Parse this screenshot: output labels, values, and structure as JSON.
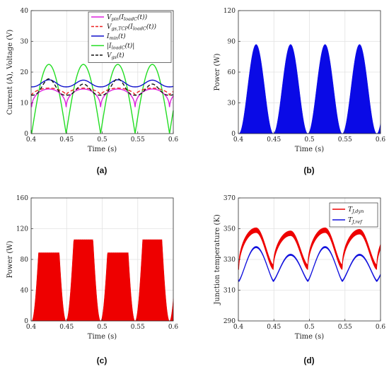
{
  "chart_data": [
    {
      "panel": "(a)",
      "type": "line",
      "xlabel": "Time (s)",
      "ylabel": "Current (A), Voltage (V)",
      "xlim": [
        0.4,
        0.6
      ],
      "ylim": [
        0,
        40
      ],
      "xticks": [
        0.4,
        0.45,
        0.5,
        0.55,
        0.6
      ],
      "xtick_labels": [
        "0.4",
        "0.45",
        "0.5",
        "0.55",
        "0.6"
      ],
      "yticks": [
        0,
        10,
        20,
        30,
        40
      ],
      "ytick_labels": [
        "0",
        "10",
        "20",
        "30",
        "40"
      ],
      "grid": true,
      "legend": "top-right",
      "period_s": 0.0485,
      "phase_s": 0.425,
      "series": [
        {
          "name": "V_pin(I_loadC(t))",
          "label_main": "V",
          "label_sub": "pin",
          "label_rest": "(I",
          "label_sub2": "loadC",
          "label_end": "(t))",
          "color": "#dd22dd",
          "dash": "solid",
          "kind": "vpin",
          "base": 7.5,
          "peak": 14.5
        },
        {
          "name": "V_gs,TCP(I_loadC(t))",
          "label_main": "V",
          "label_sub": "gs,TCP",
          "label_rest": "(I",
          "label_sub2": "loadC",
          "label_end": "(t))",
          "color": "#ee2222",
          "dash": "dashed",
          "kind": "vgstcp",
          "base": 12.5,
          "peak": 14.8
        },
        {
          "name": "I_min(t)",
          "label_main": "I",
          "label_sub": "min",
          "label_rest": "(t)",
          "label_sub2": "",
          "label_end": "",
          "color": "#1111cc",
          "dash": "solid",
          "kind": "imin",
          "base": 15.2,
          "peak": 17.5
        },
        {
          "name": "|I_loadC(t)|",
          "label_main": "|I",
          "label_sub": "loadC",
          "label_rest": "(t)|",
          "label_sub2": "",
          "label_end": "",
          "color": "#22dd22",
          "dash": "solid",
          "kind": "iload",
          "base": 0,
          "peak": 22.5
        },
        {
          "name": "V_gs(t)",
          "label_main": "V",
          "label_sub": "gs",
          "label_rest": "(t)",
          "label_sub2": "",
          "label_end": "",
          "color": "#111111",
          "dash": "dashed",
          "kind": "vgs",
          "base": 12.5,
          "peak": 17.8
        }
      ]
    },
    {
      "panel": "(b)",
      "type": "area",
      "xlabel": "Time (s)",
      "ylabel": "Power (W)",
      "xlim": [
        0.4,
        0.6
      ],
      "ylim": [
        0,
        120
      ],
      "xticks": [
        0.4,
        0.45,
        0.5,
        0.55,
        0.6
      ],
      "xtick_labels": [
        "0.4",
        "0.45",
        "0.5",
        "0.55",
        "0.6"
      ],
      "yticks": [
        0,
        30,
        60,
        90,
        120
      ],
      "ytick_labels": [
        "0",
        "30",
        "60",
        "90",
        "120"
      ],
      "grid": true,
      "color": "#0a0ae6",
      "peak": 87,
      "period_s": 0.0485,
      "phase_s": 0.425
    },
    {
      "panel": "(c)",
      "type": "area",
      "xlabel": "Time (s)",
      "ylabel": "Power (W)",
      "xlim": [
        0.4,
        0.6
      ],
      "ylim": [
        0,
        160
      ],
      "xticks": [
        0.4,
        0.45,
        0.5,
        0.55,
        0.6
      ],
      "xtick_labels": [
        "0.4",
        "0.45",
        "0.5",
        "0.55",
        "0.6"
      ],
      "yticks": [
        0,
        40,
        80,
        120,
        160
      ],
      "ytick_labels": [
        "0",
        "40",
        "80",
        "120",
        "160"
      ],
      "grid": true,
      "color": "#ee0000",
      "plateaus": [
        88,
        105,
        88,
        105
      ],
      "period_s": 0.0485,
      "phase_s": 0.425
    },
    {
      "panel": "(d)",
      "type": "line",
      "xlabel": "Time (s)",
      "ylabel": "Junction temperature (K)",
      "xlim": [
        0.4,
        0.6
      ],
      "ylim": [
        290,
        370
      ],
      "xticks": [
        0.4,
        0.45,
        0.5,
        0.55,
        0.6
      ],
      "xtick_labels": [
        "0.4",
        "0.45",
        "0.5",
        "0.55",
        "0.6"
      ],
      "yticks": [
        290,
        310,
        330,
        350,
        370
      ],
      "ytick_labels": [
        "290",
        "310",
        "330",
        "350",
        "370"
      ],
      "grid": true,
      "legend": "top-right",
      "period_s": 0.0485,
      "phase_s": 0.425,
      "series": [
        {
          "name": "T_J,dyn",
          "label_main": "T",
          "label_sub": "J,dyn",
          "color": "#ee0000",
          "low": 325,
          "highs": [
            349,
            347,
            349,
            348
          ],
          "kind": "dyn"
        },
        {
          "name": "T_J,ref",
          "label_main": "T",
          "label_sub": "J,ref",
          "color": "#1111dd",
          "low": 316,
          "highs": [
            338,
            333,
            338,
            333
          ],
          "kind": "ref"
        }
      ]
    }
  ]
}
